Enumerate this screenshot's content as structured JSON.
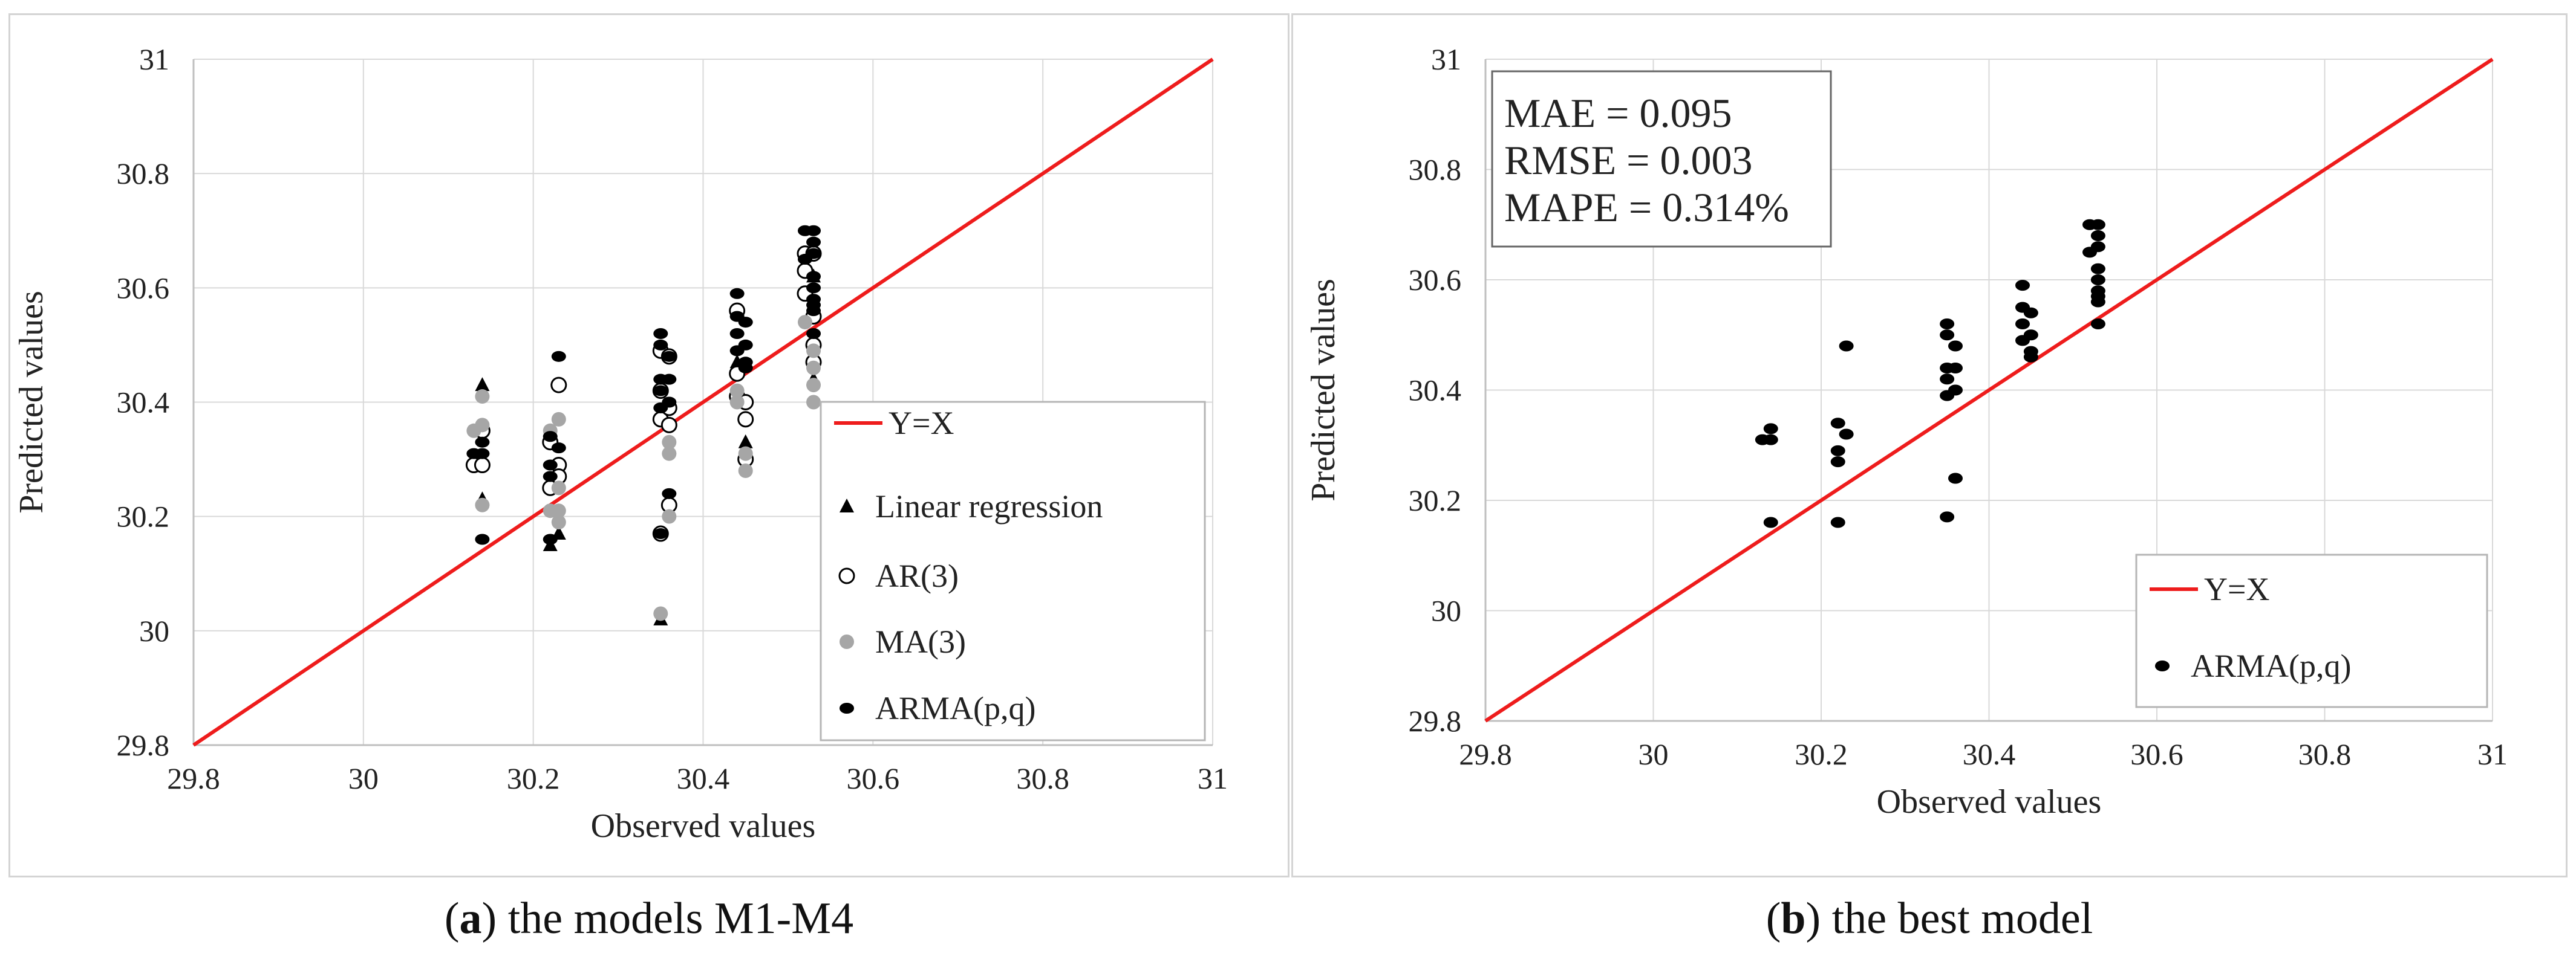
{
  "colors": {
    "line": "#ee1c1c",
    "grid": "#d9d9d9",
    "black": "#000000",
    "gray": "#a6a6a6",
    "axis": "#bfbfbf"
  },
  "captions": [
    {
      "letter": "a",
      "text": " the models M1-M4"
    },
    {
      "letter": "b",
      "text": " the best model"
    }
  ],
  "chart_data": [
    {
      "type": "scatter",
      "title": "",
      "xlabel": "Observed values",
      "ylabel": "Predicted values",
      "xlim": [
        29.8,
        31
      ],
      "ylim": [
        29.8,
        31
      ],
      "xticks": [
        "29.8",
        "30",
        "30.2",
        "30.4",
        "30.6",
        "30.8",
        "31"
      ],
      "yticks": [
        "29.8",
        "30",
        "30.2",
        "30.4",
        "30.6",
        "30.8",
        "31"
      ],
      "legend_position": "bottom-right",
      "legend": [
        "Y=X",
        "Linear regression",
        "AR(3)",
        "MA(3)",
        "ARMA(p,q)"
      ],
      "reference_line": {
        "name": "Y=X",
        "from": [
          29.8,
          29.8
        ],
        "to": [
          31,
          31
        ]
      },
      "series": [
        {
          "name": "Linear regression",
          "marker": "triangle",
          "points": [
            [
              30.14,
              30.43
            ],
            [
              30.14,
              30.23
            ],
            [
              30.23,
              30.17
            ],
            [
              30.22,
              30.15
            ],
            [
              30.35,
              30.02
            ],
            [
              30.36,
              30.32
            ],
            [
              30.44,
              30.47
            ],
            [
              30.45,
              30.33
            ],
            [
              30.53,
              30.44
            ],
            [
              30.53,
              30.62
            ]
          ]
        },
        {
          "name": "AR(3)",
          "marker": "open-circle",
          "points": [
            [
              30.13,
              30.29
            ],
            [
              30.14,
              30.35
            ],
            [
              30.14,
              30.29
            ],
            [
              30.22,
              30.33
            ],
            [
              30.22,
              30.25
            ],
            [
              30.23,
              30.43
            ],
            [
              30.23,
              30.29
            ],
            [
              30.23,
              30.27
            ],
            [
              30.35,
              30.49
            ],
            [
              30.35,
              30.42
            ],
            [
              30.35,
              30.37
            ],
            [
              30.36,
              30.48
            ],
            [
              30.36,
              30.39
            ],
            [
              30.36,
              30.36
            ],
            [
              30.35,
              30.17
            ],
            [
              30.36,
              30.22
            ],
            [
              30.44,
              30.45
            ],
            [
              30.44,
              30.41
            ],
            [
              30.45,
              30.4
            ],
            [
              30.45,
              30.37
            ],
            [
              30.45,
              30.3
            ],
            [
              30.44,
              30.56
            ],
            [
              30.52,
              30.66
            ],
            [
              30.52,
              30.59
            ],
            [
              30.53,
              30.55
            ],
            [
              30.53,
              30.5
            ],
            [
              30.53,
              30.47
            ],
            [
              30.52,
              30.63
            ],
            [
              30.53,
              30.66
            ]
          ]
        },
        {
          "name": "MA(3)",
          "marker": "gray-circle",
          "points": [
            [
              30.13,
              30.35
            ],
            [
              30.14,
              30.41
            ],
            [
              30.14,
              30.22
            ],
            [
              30.14,
              30.36
            ],
            [
              30.22,
              30.35
            ],
            [
              30.22,
              30.21
            ],
            [
              30.23,
              30.25
            ],
            [
              30.23,
              30.21
            ],
            [
              30.23,
              30.37
            ],
            [
              30.23,
              30.19
            ],
            [
              30.35,
              30.03
            ],
            [
              30.36,
              30.33
            ],
            [
              30.36,
              30.31
            ],
            [
              30.36,
              30.2
            ],
            [
              30.44,
              30.42
            ],
            [
              30.44,
              30.4
            ],
            [
              30.45,
              30.28
            ],
            [
              30.45,
              30.31
            ],
            [
              30.53,
              30.43
            ],
            [
              30.53,
              30.4
            ],
            [
              30.53,
              30.49
            ],
            [
              30.53,
              30.46
            ],
            [
              30.52,
              30.54
            ]
          ]
        },
        {
          "name": "ARMA(p,q)",
          "marker": "black-dot",
          "points": [
            [
              30.13,
              30.31
            ],
            [
              30.14,
              30.33
            ],
            [
              30.14,
              30.31
            ],
            [
              30.14,
              30.16
            ],
            [
              30.22,
              30.34
            ],
            [
              30.22,
              30.29
            ],
            [
              30.22,
              30.27
            ],
            [
              30.22,
              30.16
            ],
            [
              30.23,
              30.48
            ],
            [
              30.23,
              30.32
            ],
            [
              30.35,
              30.52
            ],
            [
              30.35,
              30.5
            ],
            [
              30.35,
              30.44
            ],
            [
              30.35,
              30.42
            ],
            [
              30.35,
              30.39
            ],
            [
              30.36,
              30.48
            ],
            [
              30.36,
              30.44
            ],
            [
              30.36,
              30.4
            ],
            [
              30.35,
              30.17
            ],
            [
              30.36,
              30.24
            ],
            [
              30.44,
              30.59
            ],
            [
              30.44,
              30.55
            ],
            [
              30.44,
              30.52
            ],
            [
              30.44,
              30.49
            ],
            [
              30.45,
              30.54
            ],
            [
              30.45,
              30.5
            ],
            [
              30.45,
              30.47
            ],
            [
              30.45,
              30.46
            ],
            [
              30.52,
              30.7
            ],
            [
              30.53,
              30.7
            ],
            [
              30.53,
              30.68
            ],
            [
              30.53,
              30.66
            ],
            [
              30.52,
              30.65
            ],
            [
              30.53,
              30.62
            ],
            [
              30.53,
              30.6
            ],
            [
              30.53,
              30.58
            ],
            [
              30.53,
              30.57
            ],
            [
              30.53,
              30.56
            ],
            [
              30.53,
              30.52
            ]
          ]
        }
      ]
    },
    {
      "type": "scatter",
      "title": "",
      "xlabel": "Observed values",
      "ylabel": "Predicted values",
      "xlim": [
        29.8,
        31
      ],
      "ylim": [
        29.8,
        31
      ],
      "xticks": [
        "29.8",
        "30",
        "30.2",
        "30.4",
        "30.6",
        "30.8",
        "31"
      ],
      "yticks": [
        "29.8",
        "30",
        "30.2",
        "30.4",
        "30.6",
        "30.8",
        "31"
      ],
      "legend_position": "bottom-right",
      "legend": [
        "Y=X",
        "ARMA(p,q)"
      ],
      "annotation": [
        "MAE   = 0.095",
        "RMSE = 0.003",
        "MAPE = 0.314%"
      ],
      "reference_line": {
        "name": "Y=X",
        "from": [
          29.8,
          29.8
        ],
        "to": [
          31,
          31
        ]
      },
      "series": [
        {
          "name": "ARMA(p,q)",
          "marker": "black-dot",
          "points": [
            [
              30.13,
              30.31
            ],
            [
              30.14,
              30.33
            ],
            [
              30.14,
              30.31
            ],
            [
              30.14,
              30.16
            ],
            [
              30.22,
              30.34
            ],
            [
              30.22,
              30.29
            ],
            [
              30.22,
              30.27
            ],
            [
              30.22,
              30.16
            ],
            [
              30.23,
              30.48
            ],
            [
              30.23,
              30.32
            ],
            [
              30.35,
              30.52
            ],
            [
              30.35,
              30.5
            ],
            [
              30.35,
              30.44
            ],
            [
              30.35,
              30.42
            ],
            [
              30.35,
              30.39
            ],
            [
              30.36,
              30.48
            ],
            [
              30.36,
              30.44
            ],
            [
              30.36,
              30.4
            ],
            [
              30.35,
              30.17
            ],
            [
              30.36,
              30.24
            ],
            [
              30.44,
              30.59
            ],
            [
              30.44,
              30.55
            ],
            [
              30.44,
              30.52
            ],
            [
              30.44,
              30.49
            ],
            [
              30.45,
              30.54
            ],
            [
              30.45,
              30.5
            ],
            [
              30.45,
              30.47
            ],
            [
              30.45,
              30.46
            ],
            [
              30.52,
              30.7
            ],
            [
              30.53,
              30.7
            ],
            [
              30.53,
              30.68
            ],
            [
              30.53,
              30.66
            ],
            [
              30.52,
              30.65
            ],
            [
              30.53,
              30.62
            ],
            [
              30.53,
              30.6
            ],
            [
              30.53,
              30.58
            ],
            [
              30.53,
              30.57
            ],
            [
              30.53,
              30.56
            ],
            [
              30.53,
              30.52
            ]
          ]
        }
      ]
    }
  ]
}
